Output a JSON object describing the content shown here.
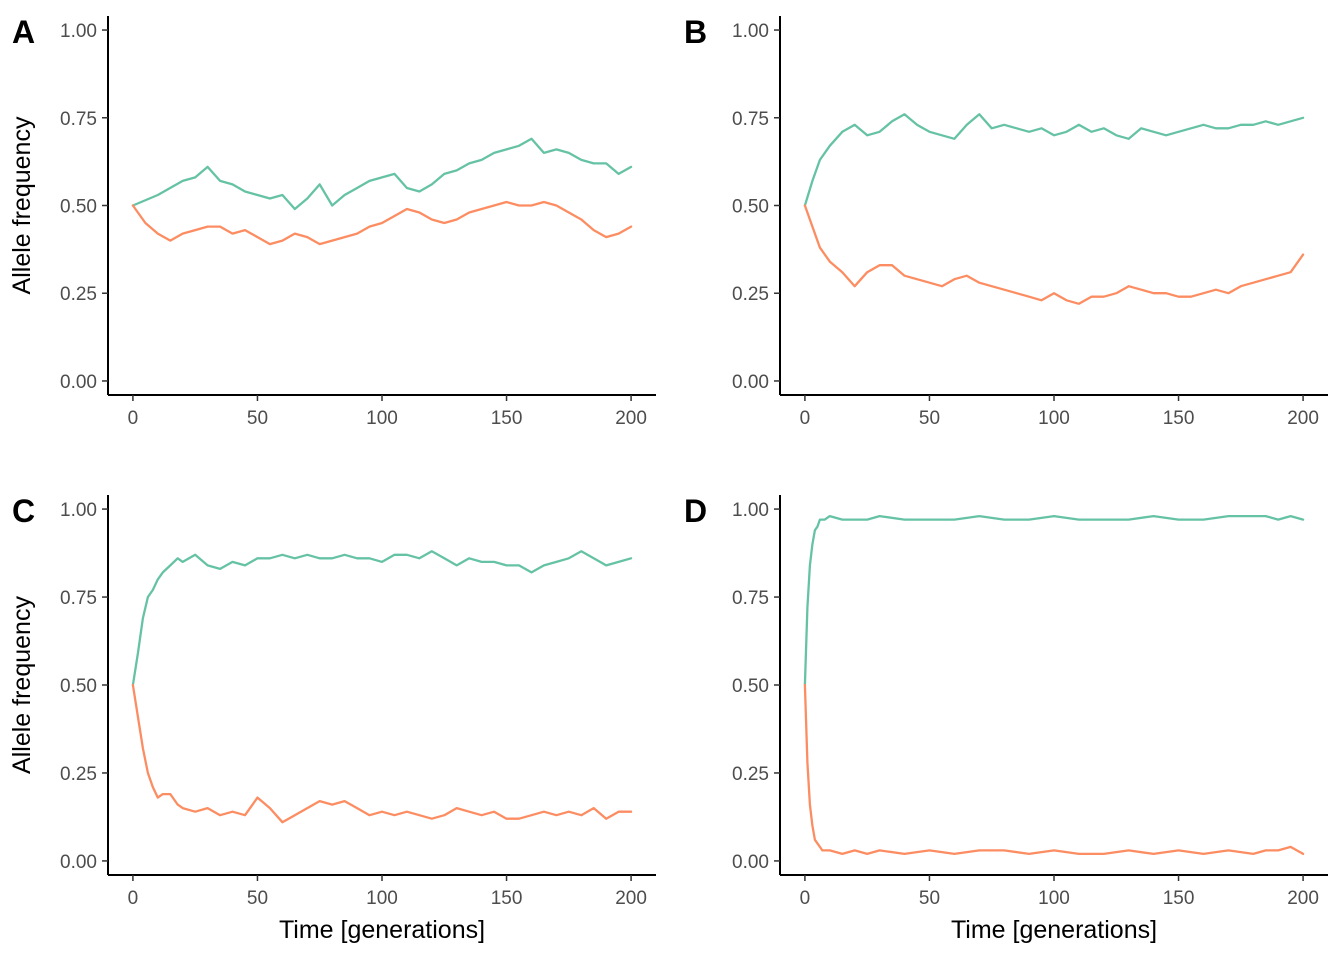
{
  "chart_data": [
    {
      "panel": "A",
      "type": "line",
      "xlabel": "",
      "ylabel": "Allele frequency",
      "xlim": [
        -10,
        210
      ],
      "ylim": [
        -0.04,
        1.04
      ],
      "x_ticks": [
        "0",
        "50",
        "100",
        "150",
        "200"
      ],
      "y_ticks": [
        "0.00",
        "0.25",
        "0.50",
        "0.75",
        "1.00"
      ],
      "grid": false,
      "series": [
        {
          "color": "#66c2a5",
          "x": [
            0,
            10,
            20,
            25,
            30,
            35,
            40,
            45,
            50,
            55,
            60,
            65,
            70,
            75,
            80,
            85,
            90,
            95,
            100,
            105,
            110,
            115,
            120,
            125,
            130,
            135,
            140,
            145,
            150,
            155,
            160,
            165,
            170,
            175,
            180,
            185,
            190,
            195,
            200
          ],
          "y": [
            0.5,
            0.53,
            0.57,
            0.58,
            0.61,
            0.57,
            0.56,
            0.54,
            0.53,
            0.52,
            0.53,
            0.49,
            0.52,
            0.56,
            0.5,
            0.53,
            0.55,
            0.57,
            0.58,
            0.59,
            0.55,
            0.54,
            0.56,
            0.59,
            0.6,
            0.62,
            0.63,
            0.65,
            0.66,
            0.67,
            0.69,
            0.65,
            0.66,
            0.65,
            0.63,
            0.62,
            0.62,
            0.59,
            0.61
          ]
        },
        {
          "color": "#fc8d62",
          "x": [
            0,
            5,
            10,
            15,
            20,
            25,
            30,
            35,
            40,
            45,
            50,
            55,
            60,
            65,
            70,
            75,
            80,
            85,
            90,
            95,
            100,
            105,
            110,
            115,
            120,
            125,
            130,
            135,
            140,
            145,
            150,
            155,
            160,
            165,
            170,
            175,
            180,
            185,
            190,
            195,
            200
          ],
          "y": [
            0.5,
            0.45,
            0.42,
            0.4,
            0.42,
            0.43,
            0.44,
            0.44,
            0.42,
            0.43,
            0.41,
            0.39,
            0.4,
            0.42,
            0.41,
            0.39,
            0.4,
            0.41,
            0.42,
            0.44,
            0.45,
            0.47,
            0.49,
            0.48,
            0.46,
            0.45,
            0.46,
            0.48,
            0.49,
            0.5,
            0.51,
            0.5,
            0.5,
            0.51,
            0.5,
            0.48,
            0.46,
            0.43,
            0.41,
            0.42,
            0.44
          ]
        }
      ]
    },
    {
      "panel": "B",
      "type": "line",
      "xlabel": "",
      "ylabel": "",
      "xlim": [
        -10,
        210
      ],
      "ylim": [
        -0.04,
        1.04
      ],
      "x_ticks": [
        "0",
        "50",
        "100",
        "150",
        "200"
      ],
      "y_ticks": [
        "0.00",
        "0.25",
        "0.50",
        "0.75",
        "1.00"
      ],
      "grid": false,
      "series": [
        {
          "color": "#66c2a5",
          "x": [
            0,
            3,
            6,
            10,
            15,
            20,
            25,
            30,
            35,
            40,
            45,
            50,
            55,
            60,
            65,
            70,
            75,
            80,
            85,
            90,
            95,
            100,
            105,
            110,
            115,
            120,
            125,
            130,
            135,
            140,
            145,
            150,
            155,
            160,
            165,
            170,
            175,
            180,
            185,
            190,
            195,
            200
          ],
          "y": [
            0.5,
            0.57,
            0.63,
            0.67,
            0.71,
            0.73,
            0.7,
            0.71,
            0.74,
            0.76,
            0.73,
            0.71,
            0.7,
            0.69,
            0.73,
            0.76,
            0.72,
            0.73,
            0.72,
            0.71,
            0.72,
            0.7,
            0.71,
            0.73,
            0.71,
            0.72,
            0.7,
            0.69,
            0.72,
            0.71,
            0.7,
            0.71,
            0.72,
            0.73,
            0.72,
            0.72,
            0.73,
            0.73,
            0.74,
            0.73,
            0.74,
            0.75
          ]
        },
        {
          "color": "#fc8d62",
          "x": [
            0,
            3,
            6,
            10,
            15,
            20,
            25,
            30,
            35,
            40,
            45,
            50,
            55,
            60,
            65,
            70,
            75,
            80,
            85,
            90,
            95,
            100,
            105,
            110,
            115,
            120,
            125,
            130,
            135,
            140,
            145,
            150,
            155,
            160,
            165,
            170,
            175,
            180,
            185,
            190,
            195,
            200
          ],
          "y": [
            0.5,
            0.44,
            0.38,
            0.34,
            0.31,
            0.27,
            0.31,
            0.33,
            0.33,
            0.3,
            0.29,
            0.28,
            0.27,
            0.29,
            0.3,
            0.28,
            0.27,
            0.26,
            0.25,
            0.24,
            0.23,
            0.25,
            0.23,
            0.22,
            0.24,
            0.24,
            0.25,
            0.27,
            0.26,
            0.25,
            0.25,
            0.24,
            0.24,
            0.25,
            0.26,
            0.25,
            0.27,
            0.28,
            0.29,
            0.3,
            0.31,
            0.36
          ]
        }
      ]
    },
    {
      "panel": "C",
      "type": "line",
      "xlabel": "Time [generations]",
      "ylabel": "Allele frequency",
      "xlim": [
        -10,
        210
      ],
      "ylim": [
        -0.04,
        1.04
      ],
      "x_ticks": [
        "0",
        "50",
        "100",
        "150",
        "200"
      ],
      "y_ticks": [
        "0.00",
        "0.25",
        "0.50",
        "0.75",
        "1.00"
      ],
      "grid": false,
      "series": [
        {
          "color": "#66c2a5",
          "x": [
            0,
            2,
            4,
            6,
            8,
            10,
            12,
            15,
            18,
            20,
            25,
            30,
            35,
            40,
            45,
            50,
            55,
            60,
            65,
            70,
            75,
            80,
            85,
            90,
            95,
            100,
            105,
            110,
            115,
            120,
            125,
            130,
            135,
            140,
            145,
            150,
            155,
            160,
            165,
            170,
            175,
            180,
            185,
            190,
            195,
            200
          ],
          "y": [
            0.5,
            0.59,
            0.69,
            0.75,
            0.77,
            0.8,
            0.82,
            0.84,
            0.86,
            0.85,
            0.87,
            0.84,
            0.83,
            0.85,
            0.84,
            0.86,
            0.86,
            0.87,
            0.86,
            0.87,
            0.86,
            0.86,
            0.87,
            0.86,
            0.86,
            0.85,
            0.87,
            0.87,
            0.86,
            0.88,
            0.86,
            0.84,
            0.86,
            0.85,
            0.85,
            0.84,
            0.84,
            0.82,
            0.84,
            0.85,
            0.86,
            0.88,
            0.86,
            0.84,
            0.85,
            0.86
          ]
        },
        {
          "color": "#fc8d62",
          "x": [
            0,
            2,
            4,
            6,
            8,
            10,
            12,
            15,
            18,
            20,
            25,
            30,
            35,
            40,
            45,
            50,
            55,
            60,
            65,
            70,
            75,
            80,
            85,
            90,
            95,
            100,
            105,
            110,
            115,
            120,
            125,
            130,
            135,
            140,
            145,
            150,
            155,
            160,
            165,
            170,
            175,
            180,
            185,
            190,
            195,
            200
          ],
          "y": [
            0.5,
            0.41,
            0.32,
            0.25,
            0.21,
            0.18,
            0.19,
            0.19,
            0.16,
            0.15,
            0.14,
            0.15,
            0.13,
            0.14,
            0.13,
            0.18,
            0.15,
            0.11,
            0.13,
            0.15,
            0.17,
            0.16,
            0.17,
            0.15,
            0.13,
            0.14,
            0.13,
            0.14,
            0.13,
            0.12,
            0.13,
            0.15,
            0.14,
            0.13,
            0.14,
            0.12,
            0.12,
            0.13,
            0.14,
            0.13,
            0.14,
            0.13,
            0.15,
            0.12,
            0.14,
            0.14
          ]
        }
      ]
    },
    {
      "panel": "D",
      "type": "line",
      "xlabel": "Time [generations]",
      "ylabel": "",
      "xlim": [
        -10,
        210
      ],
      "ylim": [
        -0.04,
        1.04
      ],
      "x_ticks": [
        "0",
        "50",
        "100",
        "150",
        "200"
      ],
      "y_ticks": [
        "0.00",
        "0.25",
        "0.50",
        "0.75",
        "1.00"
      ],
      "grid": false,
      "series": [
        {
          "color": "#66c2a5",
          "x": [
            0,
            1,
            2,
            3,
            4,
            5,
            6,
            7,
            8,
            10,
            15,
            20,
            25,
            30,
            40,
            50,
            60,
            70,
            80,
            90,
            100,
            110,
            120,
            130,
            140,
            150,
            160,
            170,
            180,
            185,
            190,
            195,
            200
          ],
          "y": [
            0.5,
            0.72,
            0.84,
            0.9,
            0.94,
            0.95,
            0.97,
            0.97,
            0.97,
            0.98,
            0.97,
            0.97,
            0.97,
            0.98,
            0.97,
            0.97,
            0.97,
            0.98,
            0.97,
            0.97,
            0.98,
            0.97,
            0.97,
            0.97,
            0.98,
            0.97,
            0.97,
            0.98,
            0.98,
            0.98,
            0.97,
            0.98,
            0.97
          ]
        },
        {
          "color": "#fc8d62",
          "x": [
            0,
            1,
            2,
            3,
            4,
            5,
            6,
            7,
            8,
            10,
            15,
            20,
            25,
            30,
            40,
            50,
            60,
            70,
            80,
            90,
            100,
            110,
            120,
            130,
            140,
            150,
            160,
            170,
            180,
            185,
            190,
            195,
            200
          ],
          "y": [
            0.5,
            0.28,
            0.16,
            0.1,
            0.06,
            0.05,
            0.04,
            0.03,
            0.03,
            0.03,
            0.02,
            0.03,
            0.02,
            0.03,
            0.02,
            0.03,
            0.02,
            0.03,
            0.03,
            0.02,
            0.03,
            0.02,
            0.02,
            0.03,
            0.02,
            0.03,
            0.02,
            0.03,
            0.02,
            0.03,
            0.03,
            0.04,
            0.02
          ]
        }
      ]
    }
  ]
}
